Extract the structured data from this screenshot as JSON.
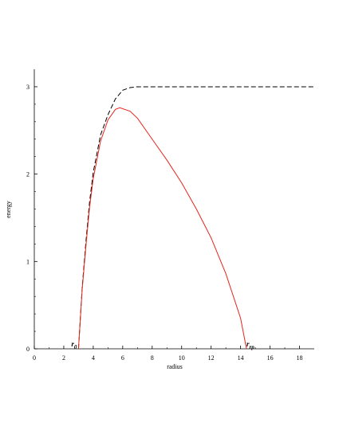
{
  "chart_data": {
    "type": "line",
    "x_label": "radius",
    "y_label": "energy",
    "xlim": [
      0,
      19
    ],
    "ylim": [
      0,
      3.2
    ],
    "xticks": [
      0,
      2,
      4,
      6,
      8,
      10,
      12,
      14,
      16,
      18
    ],
    "yticks": [
      0,
      1,
      2,
      3
    ],
    "series": [
      {
        "color": "#000000",
        "dashed": true,
        "x": [
          3,
          3.25,
          3.5,
          3.75,
          4,
          4.5,
          5,
          5.5,
          6,
          6.5,
          7,
          8,
          10,
          12,
          14,
          16,
          19
        ],
        "values": [
          0,
          0.7,
          1.22,
          1.68,
          2.02,
          2.45,
          2.68,
          2.86,
          2.96,
          2.99,
          3,
          3,
          3,
          3,
          3,
          3,
          3
        ]
      },
      {
        "color": "#e8241c",
        "dashed": false,
        "x": [
          3,
          3.25,
          3.5,
          3.75,
          4,
          4.5,
          5,
          5.5,
          5.8,
          6.5,
          7,
          8,
          9,
          10,
          11,
          12,
          13,
          14,
          14.4
        ],
        "values": [
          0,
          0.68,
          1.17,
          1.62,
          1.95,
          2.38,
          2.62,
          2.74,
          2.76,
          2.72,
          2.64,
          2.4,
          2.16,
          1.9,
          1.6,
          1.27,
          0.86,
          0.35,
          0
        ]
      }
    ],
    "annotations": [
      {
        "text": "r",
        "sub": "0",
        "x": 3
      },
      {
        "text": "r",
        "sub": "rp",
        "x": 14.4
      }
    ]
  }
}
